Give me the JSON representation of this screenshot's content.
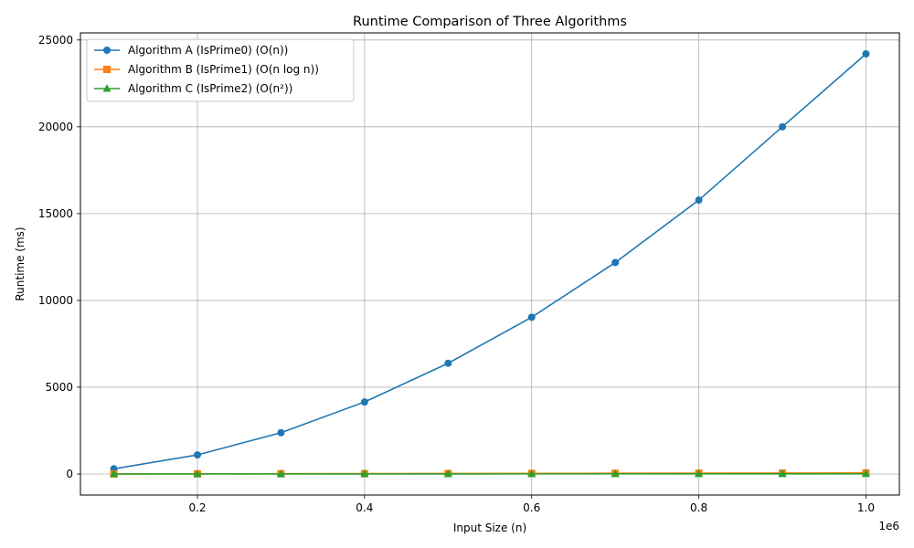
{
  "chart_data": {
    "type": "line",
    "title": "Runtime Comparison of Three Algorithms",
    "xlabel": "Input Size (n)",
    "ylabel": "Runtime (ms)",
    "x_offset_label": "1e6",
    "x": [
      100000,
      200000,
      300000,
      400000,
      500000,
      600000,
      700000,
      800000,
      900000,
      1000000
    ],
    "xlim": [
      60000,
      1040000
    ],
    "ylim": [
      -1210,
      25410
    ],
    "x_ticks": [
      200000,
      400000,
      600000,
      800000,
      1000000
    ],
    "x_tick_labels": [
      "0.2",
      "0.4",
      "0.6",
      "0.8",
      "1.0"
    ],
    "y_ticks": [
      0,
      5000,
      10000,
      15000,
      20000,
      25000
    ],
    "y_tick_labels": [
      "0",
      "5000",
      "10000",
      "15000",
      "20000",
      "25000"
    ],
    "grid": true,
    "legend_position": "top-left",
    "series": [
      {
        "name": "Algorithm A (IsPrime0) (O(n))",
        "color": "#1f77b4",
        "marker": "circle",
        "values": [
          300,
          1100,
          2380,
          4150,
          6380,
          9030,
          12180,
          15780,
          20000,
          24200
        ]
      },
      {
        "name": "Algorithm B (IsPrime1) (O(n log n))",
        "color": "#ff7f0e",
        "marker": "square",
        "values": [
          5,
          10,
          16,
          22,
          28,
          35,
          41,
          48,
          55,
          62
        ]
      },
      {
        "name": "Algorithm C (IsPrime2) (O(n²))",
        "color": "#2ca02c",
        "marker": "triangle",
        "values": [
          1,
          2,
          3,
          4,
          5,
          6,
          7,
          8,
          9,
          10
        ]
      }
    ]
  }
}
